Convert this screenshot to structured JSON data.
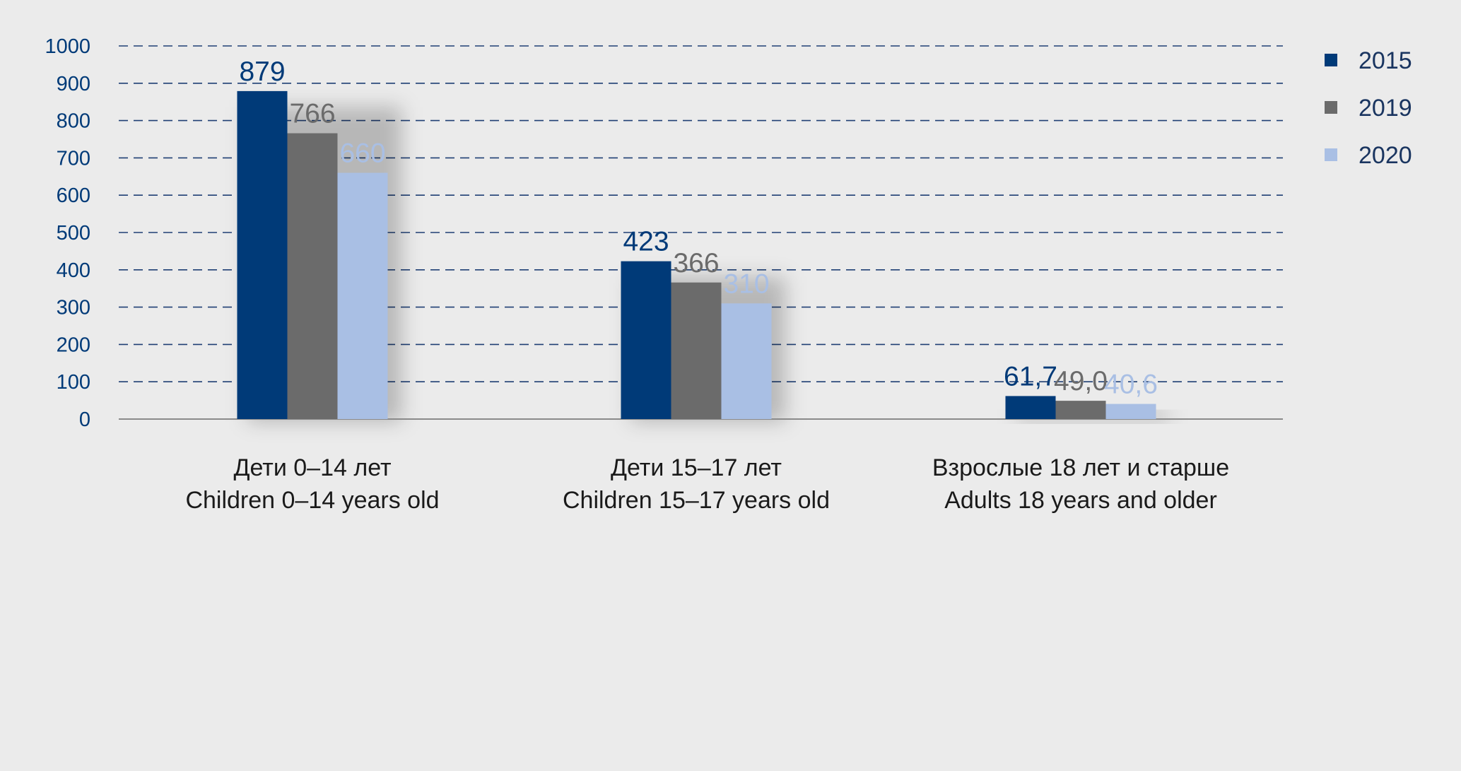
{
  "chart_data": {
    "type": "bar",
    "categories": [
      [
        "Дети 0–14 лет",
        "Children 0–14 years old"
      ],
      [
        "Дети 15–17 лет",
        "Children 15–17 years old"
      ],
      [
        "Взрослые 18 лет и старше",
        "Adults 18 years and older"
      ]
    ],
    "series": [
      {
        "name": "2015",
        "color": "#003a78",
        "values": [
          879,
          423,
          61.7
        ],
        "labels": [
          "879",
          "423",
          "61,7"
        ]
      },
      {
        "name": "2019",
        "color": "#6b6b6b",
        "values": [
          766,
          366,
          49.0
        ],
        "labels": [
          "766",
          "366",
          "49,0"
        ]
      },
      {
        "name": "2020",
        "color": "#a9bfe4",
        "values": [
          660,
          310,
          40.6
        ],
        "labels": [
          "660",
          "310",
          "40,6"
        ]
      }
    ],
    "yticks": [
      "0",
      "100",
      "200",
      "300",
      "400",
      "500",
      "600",
      "700",
      "800",
      "900",
      "1000"
    ],
    "ylim": [
      0,
      1000
    ],
    "grid": true,
    "legend_position": "right",
    "colors": {
      "background": "#ebebeb",
      "axis_text": "#003a78",
      "grid": "#1f3f74",
      "category_text": "#1a1a1a"
    }
  }
}
